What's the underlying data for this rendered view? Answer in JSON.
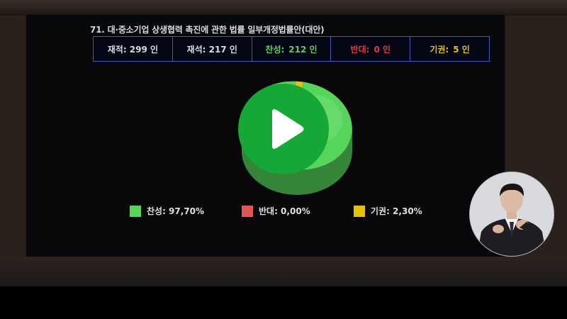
{
  "vote": {
    "title": "71. 대·중소기업 상생협력 촉진에 관한 법률 일부개정법률안(대안)",
    "stats": {
      "enrolled": "재적: 299 인",
      "present": "재석: 217 인",
      "yes_label": "찬성:",
      "yes_value": "212 인",
      "no_label": "반대:",
      "no_value": "0 인",
      "abstain_label": "기권:",
      "abstain_value": "5 인"
    }
  },
  "chart_data": {
    "type": "pie",
    "categories": [
      "찬성",
      "반대",
      "기권"
    ],
    "values": [
      97.7,
      0.0,
      2.3
    ],
    "colors": [
      "#55d65a",
      "#e05555",
      "#e5c10a"
    ],
    "legend": [
      "찬성: 97,70%",
      "반대: 0,00%",
      "기권: 2,30%"
    ]
  },
  "colors": {
    "yes": "#5cd15e",
    "no": "#e23b3b",
    "abstain": "#e0c21a",
    "frame_border": "#3a5bbb"
  },
  "player": {
    "play_icon": "play-icon"
  },
  "interpreter": {
    "icon": "sign-language-interpreter"
  }
}
